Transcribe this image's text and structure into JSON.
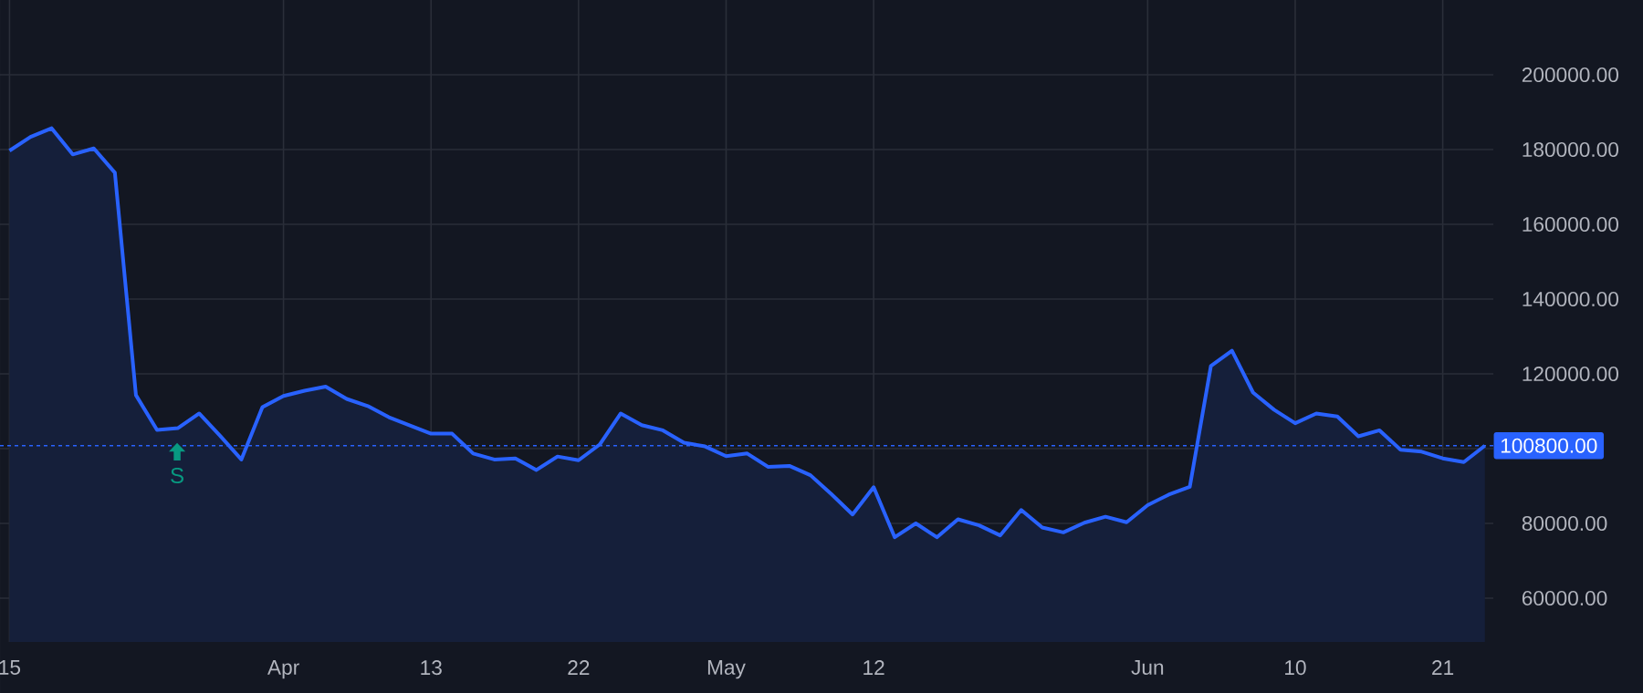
{
  "chart_data": {
    "type": "area",
    "categories": [
      "15",
      null,
      null,
      null,
      null,
      null,
      null,
      null,
      null,
      null,
      null,
      null,
      null,
      "Apr",
      null,
      null,
      null,
      null,
      null,
      null,
      "13",
      null,
      null,
      null,
      null,
      null,
      null,
      "22",
      null,
      null,
      null,
      null,
      null,
      null,
      "May",
      null,
      null,
      null,
      null,
      null,
      null,
      "12",
      null,
      null,
      null,
      null,
      null,
      null,
      null,
      null,
      null,
      null,
      null,
      null,
      "Jun",
      null,
      null,
      null,
      null,
      null,
      null,
      "10",
      null,
      null,
      null,
      null,
      null,
      null,
      "21",
      null,
      null
    ],
    "series": [
      {
        "color": "#2962ff",
        "values": [
          179700,
          183400,
          185700,
          178700,
          180300,
          173800,
          114300,
          105000,
          105500,
          109400,
          103400,
          97100,
          111100,
          114100,
          115500,
          116600,
          113300,
          111400,
          108400,
          106200,
          104000,
          104000,
          98700,
          97100,
          97400,
          94300,
          97900,
          96900,
          101100,
          109400,
          106300,
          104900,
          101600,
          100600,
          98000,
          98700,
          95100,
          95400,
          92900,
          87800,
          82400,
          89700,
          76300,
          80000,
          76300,
          81100,
          79500,
          76800,
          83600,
          78900,
          77600,
          80200,
          81800,
          80300,
          84900,
          87700,
          89800,
          122100,
          126200,
          115000,
          110400,
          106800,
          109400,
          108600,
          103300,
          104900,
          99700,
          99200,
          97400,
          96400,
          100800
        ]
      }
    ],
    "ylim": [
      48300,
      220000
    ],
    "yticks": [
      {
        "value": 60000,
        "label": "60000.00"
      },
      {
        "value": 80000,
        "label": "80000.00"
      },
      {
        "value": 100000,
        "label": null
      },
      {
        "value": 120000,
        "label": "120000.00"
      },
      {
        "value": 140000,
        "label": "140000.00"
      },
      {
        "value": 160000,
        "label": "160000.00"
      },
      {
        "value": 180000,
        "label": "180000.00"
      },
      {
        "value": 200000,
        "label": "200000.00"
      }
    ],
    "grid": true,
    "ref_lines": [
      {
        "axis": "y",
        "value": 100800,
        "label": "100800.00",
        "color": "#2962ff",
        "line_style": "dotted"
      }
    ],
    "annotations": [
      "S"
    ]
  }
}
